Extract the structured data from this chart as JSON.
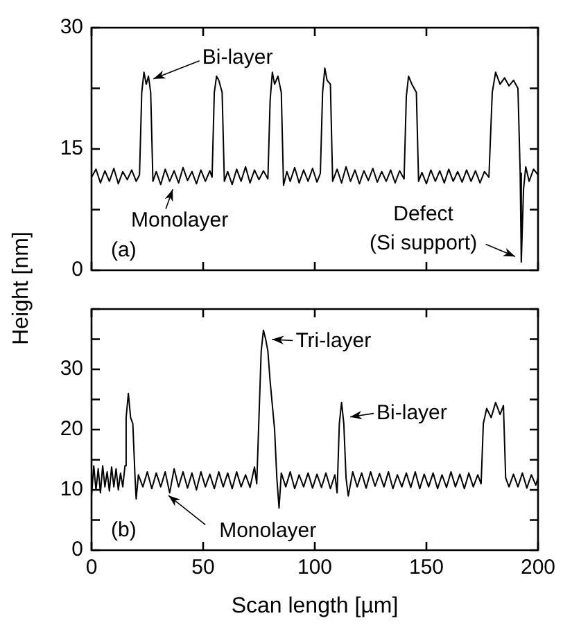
{
  "chart_data": [
    {
      "type": "line",
      "ylabel": "Height [nm]",
      "xlim": [
        0,
        200
      ],
      "ylim": [
        0,
        30
      ],
      "xticks": [
        0,
        50,
        100,
        150,
        200
      ],
      "yticks": [
        0,
        {
          "value": 7.5,
          "label": null
        },
        15,
        {
          "value": 22.5,
          "label": null
        },
        30
      ],
      "tick_labels": "y",
      "grid": false,
      "legend": false,
      "marker": "none",
      "line_style": "solid",
      "series": [
        {
          "color": "#000000",
          "x": [
            0,
            2,
            4,
            6,
            8,
            10,
            12,
            14,
            16,
            18,
            20,
            21.5,
            22.5,
            23.5,
            24.5,
            25.5,
            26.5,
            27.5,
            29,
            31,
            33,
            35,
            37,
            39,
            41,
            43,
            45,
            47,
            49,
            51,
            53,
            54,
            55,
            56,
            57,
            58.5,
            59.5,
            61,
            63,
            65,
            67,
            69,
            71,
            73,
            75,
            77,
            79,
            80,
            81,
            82,
            83.5,
            85,
            86,
            87.5,
            89,
            91,
            93,
            95,
            97,
            99,
            101,
            102.5,
            103.5,
            104.5,
            105.5,
            107,
            108,
            110,
            112,
            114,
            116,
            118,
            120,
            122,
            124,
            126,
            128,
            130,
            132,
            134,
            136,
            138,
            140,
            141,
            142,
            143.5,
            145.5,
            146.5,
            148,
            150,
            152,
            154,
            156,
            158,
            160,
            162,
            164,
            166,
            168,
            170,
            172,
            174,
            176,
            178,
            179.5,
            181,
            183,
            185,
            187,
            189,
            191,
            192,
            192.5,
            193.5,
            194.5,
            196,
            198,
            200
          ],
          "values": [
            11.5,
            12.5,
            10.8,
            12.3,
            11,
            12.6,
            10.7,
            12.2,
            11.2,
            12.4,
            11,
            11.8,
            22,
            24.5,
            23,
            24,
            22,
            11,
            12.2,
            10.6,
            12.5,
            11,
            12.3,
            10.8,
            12.7,
            11.1,
            12.2,
            10.7,
            12.4,
            11,
            12.3,
            11.5,
            22,
            24,
            23.5,
            22,
            11,
            12.2,
            10.6,
            12.5,
            11,
            12.8,
            10.8,
            12.4,
            11.2,
            12.3,
            11.3,
            21,
            24.5,
            23,
            24,
            22,
            10.5,
            12.2,
            11,
            12.7,
            10.8,
            12.4,
            11,
            12.6,
            10.9,
            12,
            22,
            25,
            23.5,
            23,
            11,
            12.5,
            10.8,
            12.8,
            11,
            12.4,
            10.7,
            12.3,
            11.1,
            12.6,
            10.9,
            12.2,
            11,
            12.4,
            10.8,
            12.3,
            11.3,
            21.5,
            24,
            23,
            22,
            11,
            12.1,
            10.7,
            12.4,
            11,
            12.3,
            10.8,
            12.5,
            11,
            12.2,
            10.9,
            12.4,
            11,
            12.3,
            10.8,
            12.2,
            11.5,
            22,
            24.5,
            23,
            23.8,
            22.8,
            23.5,
            22.5,
            12,
            1,
            10,
            12.8,
            11,
            12.5,
            11.8
          ]
        }
      ],
      "annotations": [
        {
          "text": "Bi-layer",
          "x": 26,
          "y": 23.5
        },
        {
          "text": "Monolayer",
          "x": 37,
          "y": 10.5
        },
        {
          "text": "Defect\n(Si support)",
          "x": 191.5,
          "y": 1.5
        },
        "(a)"
      ]
    },
    {
      "type": "line",
      "xlabel": "Scan length [µm]",
      "xlim": [
        0,
        200
      ],
      "ylim": [
        0,
        40
      ],
      "xticks": [
        0,
        50,
        100,
        150,
        200
      ],
      "yticks": [
        0,
        {
          "value": 5,
          "label": null
        },
        10,
        {
          "value": 15,
          "label": null
        },
        20,
        {
          "value": 25,
          "label": null
        },
        30,
        {
          "value": 35,
          "label": null
        },
        {
          "value": 40,
          "label": null
        }
      ],
      "grid": false,
      "legend": false,
      "marker": "none",
      "line_style": "solid",
      "series": [
        {
          "color": "#000000",
          "x": [
            0,
            1,
            2,
            3,
            4,
            5,
            6,
            7,
            8,
            9,
            10,
            11,
            12,
            13,
            14,
            15,
            15.5,
            16.5,
            17.5,
            18.5,
            19.5,
            20,
            21,
            23,
            25,
            27,
            29,
            31,
            33,
            35,
            37,
            39,
            41,
            43,
            45,
            47,
            49,
            51,
            53,
            55,
            57,
            59,
            61,
            63,
            65,
            67,
            69,
            71,
            73,
            74,
            75,
            76,
            77,
            78,
            79,
            80,
            81,
            82,
            83,
            84,
            85,
            87,
            89,
            91,
            93,
            95,
            97,
            99,
            101,
            103,
            105,
            107,
            109,
            110,
            111,
            112,
            113,
            114,
            115,
            117,
            119,
            121,
            123,
            125,
            127,
            129,
            131,
            133,
            135,
            137,
            139,
            141,
            143,
            145,
            147,
            149,
            151,
            153,
            155,
            157,
            159,
            161,
            163,
            165,
            167,
            169,
            171,
            173,
            174.5,
            175.5,
            177,
            179,
            181,
            183,
            184.5,
            185.5,
            187,
            189,
            191,
            193,
            195,
            197,
            199,
            200
          ],
          "values": [
            9,
            14,
            10,
            13.5,
            9.5,
            14,
            10.5,
            13,
            9.8,
            13.8,
            10.5,
            13.5,
            10,
            12.8,
            10.5,
            14,
            22,
            26,
            22,
            21,
            12,
            8.5,
            12.5,
            10.5,
            13,
            10.2,
            12.8,
            10.5,
            13,
            9.5,
            13.5,
            10.5,
            13,
            10.3,
            12.8,
            10,
            13,
            10.5,
            12.6,
            10.2,
            13,
            10.5,
            12.8,
            10.2,
            13,
            10.5,
            12.5,
            10.4,
            13.8,
            11,
            22,
            33,
            36.5,
            35,
            33,
            28,
            24,
            20,
            12,
            7,
            12.8,
            10.5,
            13,
            10.2,
            12.5,
            10.5,
            12.8,
            10.3,
            12.6,
            10.4,
            12.8,
            10.2,
            12.5,
            9.5,
            21,
            24.5,
            21,
            12,
            9,
            13,
            10.5,
            12.8,
            10.3,
            13,
            10.6,
            12.7,
            10.5,
            13,
            10.2,
            12.5,
            10.5,
            12.8,
            10.4,
            13,
            10.2,
            12.6,
            10.5,
            12.8,
            10.2,
            12.5,
            10.4,
            13,
            10.5,
            12.6,
            10.2,
            12.8,
            10.5,
            12.5,
            11,
            21,
            23.5,
            22,
            24.5,
            22.5,
            24,
            12,
            10.5,
            12.6,
            10.5,
            12.8,
            10.3,
            12.5,
            10.8,
            12
          ]
        }
      ],
      "annotations": [
        {
          "text": "Tri-layer",
          "x": 79,
          "y": 35
        },
        {
          "text": "Bi-layer",
          "x": 114,
          "y": 22
        },
        {
          "text": "Monolayer",
          "x": 33,
          "y": 9.5
        },
        "(b)"
      ]
    }
  ]
}
